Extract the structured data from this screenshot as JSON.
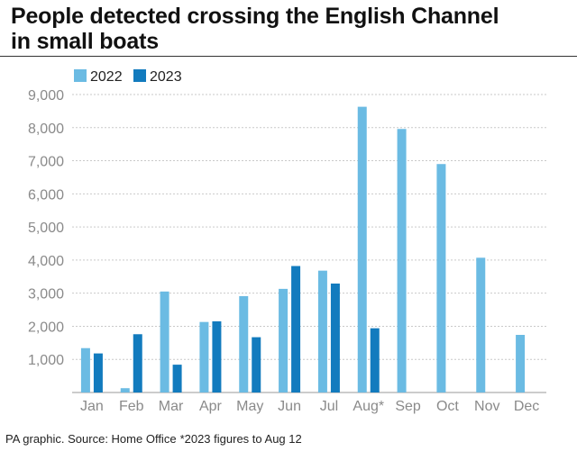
{
  "title_lines": [
    "People detected crossing the English Channel",
    "in small boats"
  ],
  "footer": {
    "credit": "PA graphic. Source: Home Office",
    "note": "*2023 figures to Aug 12"
  },
  "colors": {
    "series_2022": "#6bbbe3",
    "series_2023": "#127bbe",
    "grid": "#c9c9c9",
    "tick_text": "#8a8a8a"
  },
  "chart_data": {
    "type": "bar",
    "title": "People detected crossing the English Channel in small boats",
    "xlabel": "",
    "ylabel": "",
    "categories": [
      "Jan",
      "Feb",
      "Mar",
      "Apr",
      "May",
      "Jun",
      "Jul",
      "Aug*",
      "Sep",
      "Oct",
      "Nov",
      "Dec"
    ],
    "series": [
      {
        "name": "2022",
        "values": [
          1340,
          130,
          3050,
          2130,
          2910,
          3130,
          3680,
          8630,
          7960,
          6900,
          4070,
          1740
        ]
      },
      {
        "name": "2023",
        "values": [
          1180,
          1760,
          840,
          2150,
          1670,
          3820,
          3290,
          1940,
          null,
          null,
          null,
          null
        ]
      }
    ],
    "ylim": [
      0,
      9000
    ],
    "yticks": [
      1000,
      2000,
      3000,
      4000,
      5000,
      6000,
      7000,
      8000,
      9000
    ],
    "ytick_labels": [
      "1,000",
      "2,000",
      "3,000",
      "4,000",
      "5,000",
      "6,000",
      "7,000",
      "8,000",
      "9,000"
    ],
    "grid": true,
    "legend": "top-left"
  }
}
